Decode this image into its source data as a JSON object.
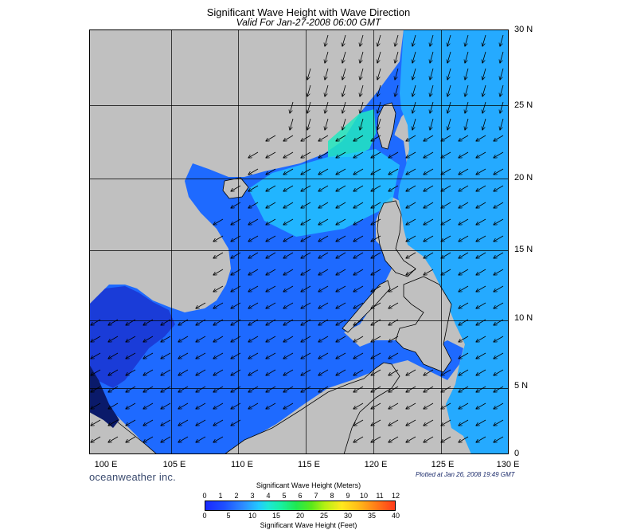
{
  "header": {
    "title": "Significant Wave Height with Wave Direction",
    "subtitle": "Valid For Jan-27-2008 06:00 GMT"
  },
  "map": {
    "lat_labels": [
      "30 N",
      "25 N",
      "20 N",
      "15 N",
      "10 N",
      "5 N",
      "0"
    ],
    "lon_labels": [
      "100 E",
      "105 E",
      "110 E",
      "115 E",
      "120 E",
      "125 E",
      "130 E"
    ],
    "land_color": "#c0c0c0",
    "sea_color": "#1e6aff",
    "wave_direction": "from northeast"
  },
  "footer": {
    "brand": "oceanweather inc.",
    "plotted": "Plotted at Jan 26, 2008 19:49 GMT"
  },
  "colorbar": {
    "title_meters": "Significant Wave Height (Meters)",
    "title_feet": "Significant Wave Height (Feet)",
    "meters_ticks": [
      "0",
      "1",
      "2",
      "3",
      "4",
      "5",
      "6",
      "7",
      "8",
      "9",
      "10",
      "11",
      "12"
    ],
    "feet_ticks": [
      "0",
      "5",
      "10",
      "15",
      "20",
      "25",
      "30",
      "35",
      "40"
    ]
  }
}
